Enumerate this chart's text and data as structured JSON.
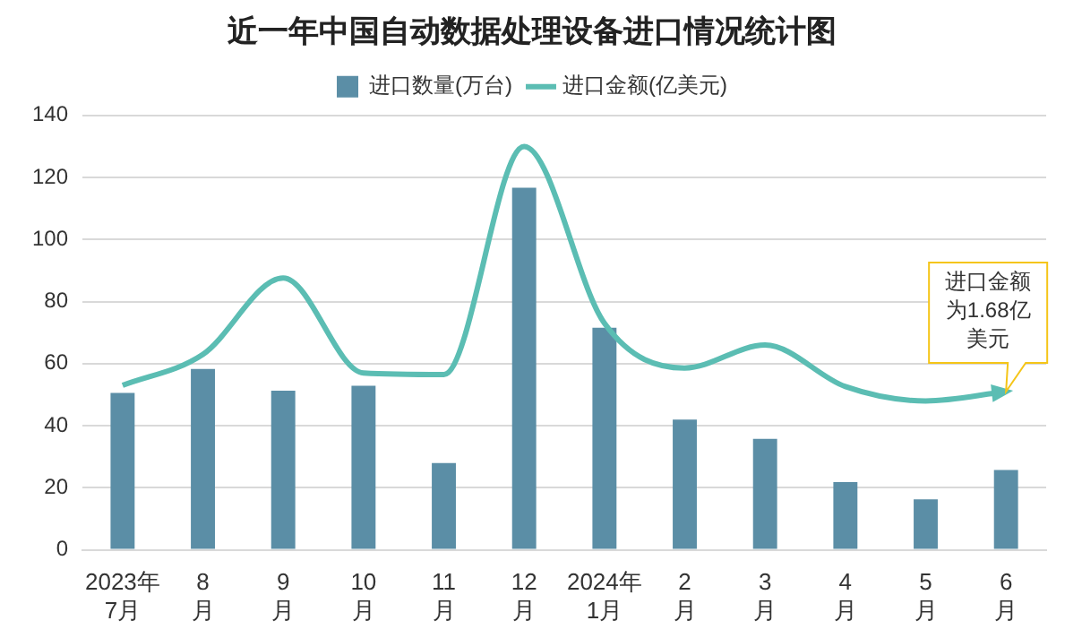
{
  "chart_data": {
    "type": "bar",
    "title": "近一年中国自动数据处理设备进口情况统计图",
    "categories": [
      "2023年7月",
      "8月",
      "9月",
      "10月",
      "11月",
      "12月",
      "2024年1月",
      "2月",
      "3月",
      "4月",
      "5月",
      "6月"
    ],
    "series": [
      {
        "name": "进口数量(万台)",
        "color": "#5b8ea6",
        "values": [
          50.6,
          58.3,
          51.3,
          52.9,
          28,
          116.7,
          71.6,
          42,
          35.8,
          21.8,
          16.3,
          25.7
        ]
      },
      {
        "name": "进口金额(亿美元)",
        "type": "line",
        "color": "#5bbdb3",
        "values": [
          53,
          63,
          87.6,
          57,
          56.5,
          130,
          73,
          58.6,
          66,
          52.6,
          48,
          51
        ]
      }
    ],
    "ylim": [
      0,
      140
    ],
    "yticks": [
      0,
      20,
      40,
      60,
      80,
      100,
      120,
      140
    ],
    "grid": "y",
    "legend": "top",
    "annotations": [
      {
        "text": "进口金额为1.68亿美元",
        "x": "6月",
        "y": 51
      }
    ]
  }
}
